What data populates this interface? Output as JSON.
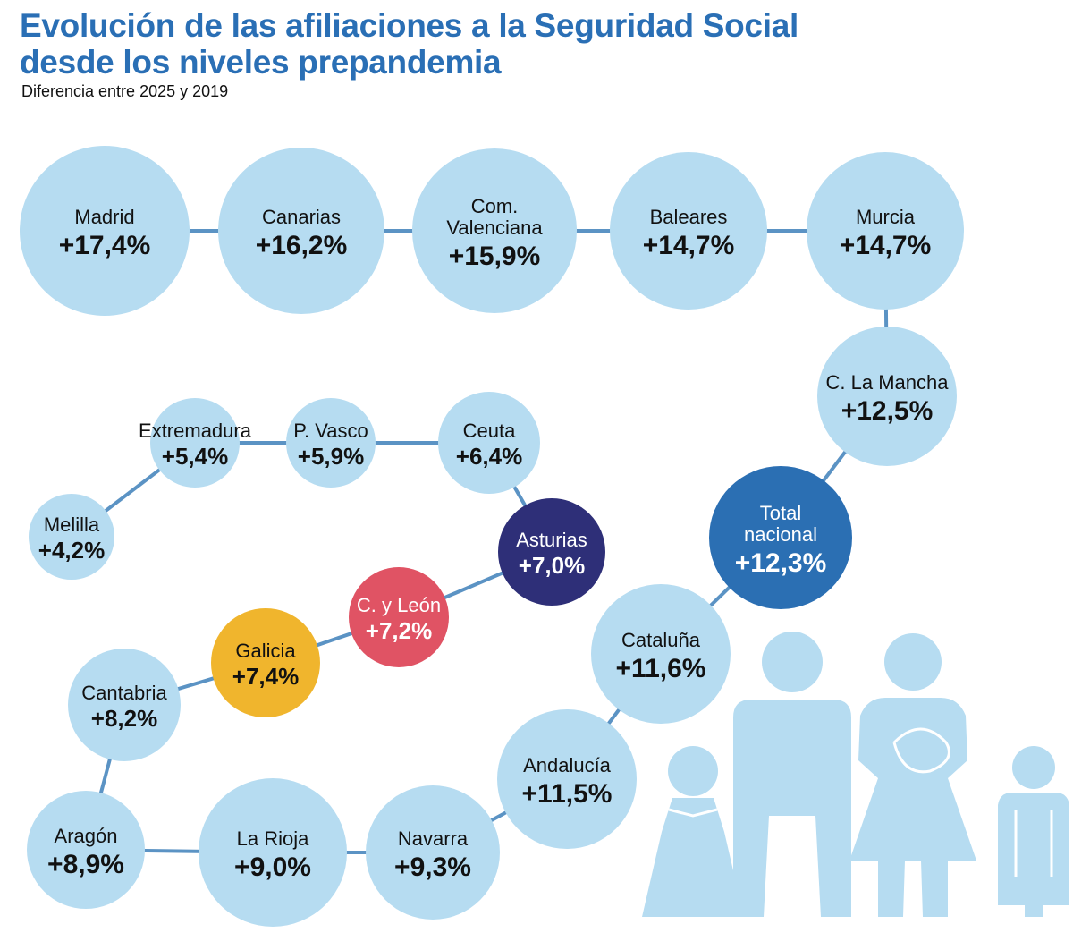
{
  "title_lines": [
    "Evolución de las afiliaciones a la Seguridad Social",
    "desde los niveles prepandemia"
  ],
  "subtitle": "Diferencia entre 2025 y 2019",
  "colors": {
    "title": "#2a6fb5",
    "bubble": "#b6dcf1",
    "connector": "#5b93c4",
    "total_nacional": "#2b6fb3",
    "asturias": "#2e2f78",
    "c_y_leon": "#e05364",
    "galicia": "#f0b52d"
  },
  "chart_data": {
    "type": "bubble-path",
    "title": "Evolución de las afiliaciones a la Seguridad Social desde los niveles prepandemia",
    "subtitle": "Diferencia entre 2025 y 2019",
    "unit": "%",
    "items": [
      {
        "name": "Madrid",
        "label": "+17,4%",
        "value": 17.4
      },
      {
        "name": "Canarias",
        "label": "+16,2%",
        "value": 16.2
      },
      {
        "name": "Com. Valenciana",
        "label": "+15,9%",
        "value": 15.9
      },
      {
        "name": "Baleares",
        "label": "+14,7%",
        "value": 14.7
      },
      {
        "name": "Murcia",
        "label": "+14,7%",
        "value": 14.7
      },
      {
        "name": "C. La Mancha",
        "label": "+12,5%",
        "value": 12.5
      },
      {
        "name": "Total nacional",
        "label": "+12,3%",
        "value": 12.3,
        "highlight": "total_nacional"
      },
      {
        "name": "Cataluña",
        "label": "+11,6%",
        "value": 11.6
      },
      {
        "name": "Andalucía",
        "label": "+11,5%",
        "value": 11.5
      },
      {
        "name": "Navarra",
        "label": "+9,3%",
        "value": 9.3
      },
      {
        "name": "La Rioja",
        "label": "+9,0%",
        "value": 9.0
      },
      {
        "name": "Aragón",
        "label": "+8,9%",
        "value": 8.9
      },
      {
        "name": "Cantabria",
        "label": "+8,2%",
        "value": 8.2
      },
      {
        "name": "Galicia",
        "label": "+7,4%",
        "value": 7.4,
        "highlight": "galicia"
      },
      {
        "name": "C. y León",
        "label": "+7,2%",
        "value": 7.2,
        "highlight": "c_y_leon"
      },
      {
        "name": "Asturias",
        "label": "+7,0%",
        "value": 7.0,
        "highlight": "asturias"
      },
      {
        "name": "Ceuta",
        "label": "+6,4%",
        "value": 6.4
      },
      {
        "name": "P. Vasco",
        "label": "+5,9%",
        "value": 5.9
      },
      {
        "name": "Extremadura",
        "label": "+5,4%",
        "value": 5.4
      },
      {
        "name": "Melilla",
        "label": "+4,2%",
        "value": 4.2
      }
    ]
  },
  "illustration": {
    "icon": "family-silhouette-icon"
  }
}
